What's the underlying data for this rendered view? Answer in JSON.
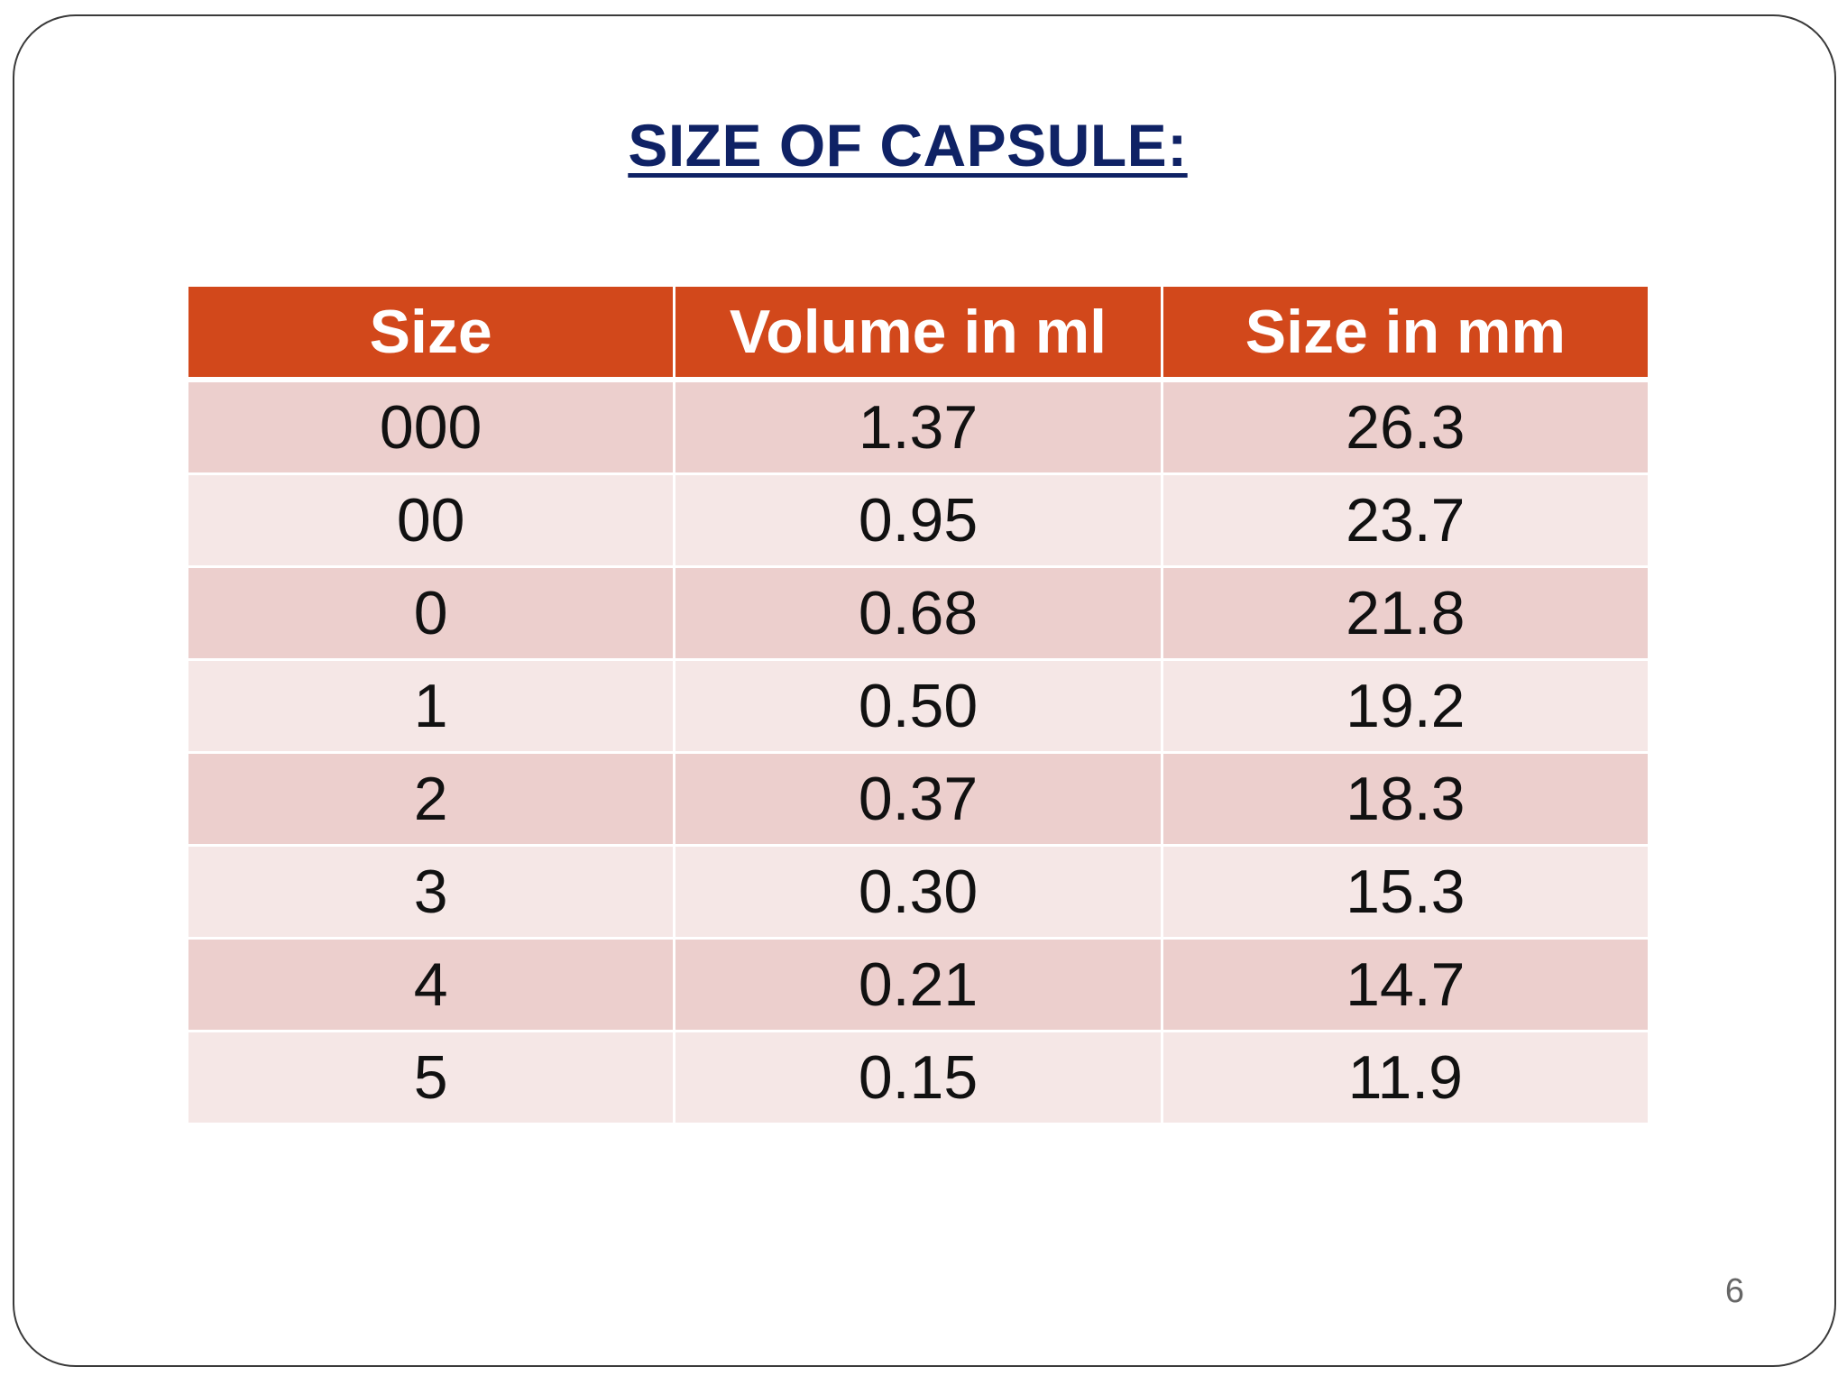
{
  "slide": {
    "title": "SIZE OF CAPSULE:",
    "page_number": "6"
  },
  "table": {
    "headers": [
      "Size",
      "Volume in ml",
      "Size in mm"
    ],
    "rows": [
      [
        "000",
        "1.37",
        "26.3"
      ],
      [
        "00",
        "0.95",
        "23.7"
      ],
      [
        "0",
        "0.68",
        "21.8"
      ],
      [
        "1",
        "0.50",
        "19.2"
      ],
      [
        "2",
        "0.37",
        "18.3"
      ],
      [
        "3",
        "0.30",
        "15.3"
      ],
      [
        "4",
        "0.21",
        "14.7"
      ],
      [
        "5",
        "0.15",
        "11.9"
      ]
    ]
  },
  "colors": {
    "title": "#0f2265",
    "header_bg": "#d2481b",
    "row_odd_bg": "#eccfcd",
    "row_even_bg": "#f5e7e6"
  }
}
